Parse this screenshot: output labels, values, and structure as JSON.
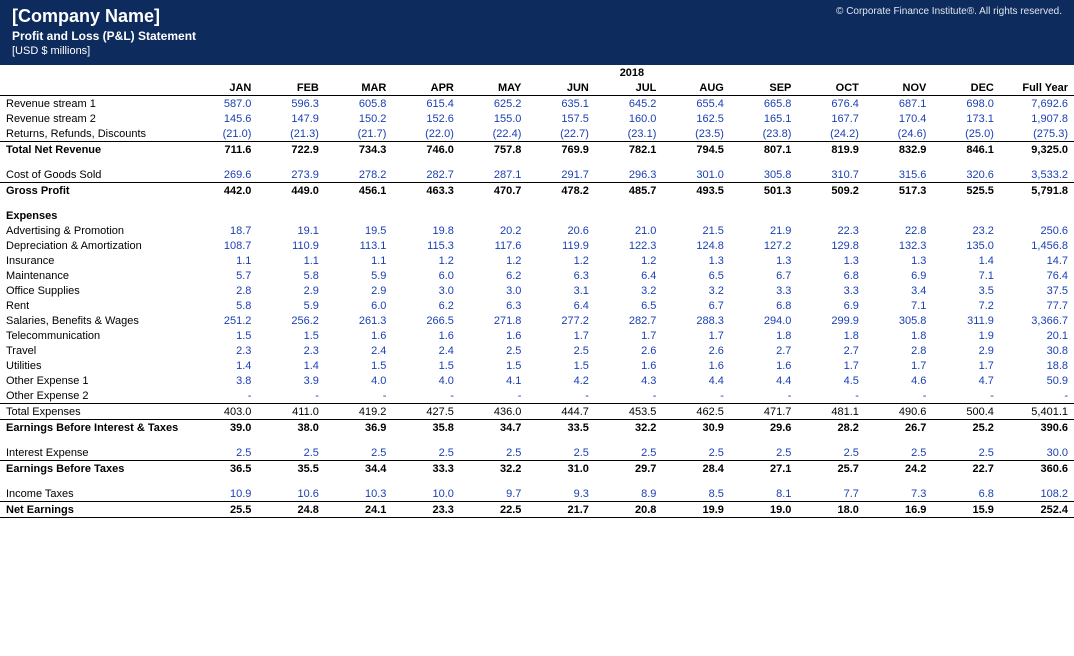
{
  "header": {
    "company_name": "[Company Name]",
    "subtitle": "Profit and Loss (P&L) Statement",
    "unit": "[USD $ millions]",
    "copyright": "© Corporate Finance Institute®. All rights reserved."
  },
  "table": {
    "year": "2018",
    "months": [
      "JAN",
      "FEB",
      "MAR",
      "APR",
      "MAY",
      "JUN",
      "JUL",
      "AUG",
      "SEP",
      "OCT",
      "NOV",
      "DEC"
    ],
    "full_year_label": "Full Year",
    "colors": {
      "header_bg": "#0d2b5c",
      "header_text": "#ffffff",
      "data_text": "#1a3fb3",
      "total_text": "#000000",
      "border": "#000000"
    },
    "rows": [
      {
        "type": "data",
        "label": "Revenue stream 1",
        "values": [
          "587.0",
          "596.3",
          "605.8",
          "615.4",
          "625.2",
          "635.1",
          "645.2",
          "655.4",
          "665.8",
          "676.4",
          "687.1",
          "698.0"
        ],
        "fy": "7,692.6"
      },
      {
        "type": "data",
        "label": "Revenue stream 2",
        "values": [
          "145.6",
          "147.9",
          "150.2",
          "152.6",
          "155.0",
          "157.5",
          "160.0",
          "162.5",
          "165.1",
          "167.7",
          "170.4",
          "173.1"
        ],
        "fy": "1,907.8"
      },
      {
        "type": "data",
        "label": "Returns, Refunds, Discounts",
        "values": [
          "(21.0)",
          "(21.3)",
          "(21.7)",
          "(22.0)",
          "(22.4)",
          "(22.7)",
          "(23.1)",
          "(23.5)",
          "(23.8)",
          "(24.2)",
          "(24.6)",
          "(25.0)"
        ],
        "fy": "(275.3)"
      },
      {
        "type": "total",
        "label": "Total Net Revenue",
        "values": [
          "711.6",
          "722.9",
          "734.3",
          "746.0",
          "757.8",
          "769.9",
          "782.1",
          "794.5",
          "807.1",
          "819.9",
          "832.9",
          "846.1"
        ],
        "fy": "9,325.0",
        "border_top": true
      },
      {
        "type": "spacer"
      },
      {
        "type": "data",
        "label": "Cost of Goods Sold",
        "values": [
          "269.6",
          "273.9",
          "278.2",
          "282.7",
          "287.1",
          "291.7",
          "296.3",
          "301.0",
          "305.8",
          "310.7",
          "315.6",
          "320.6"
        ],
        "fy": "3,533.2"
      },
      {
        "type": "total",
        "label": "Gross Profit",
        "values": [
          "442.0",
          "449.0",
          "456.1",
          "463.3",
          "470.7",
          "478.2",
          "485.7",
          "493.5",
          "501.3",
          "509.2",
          "517.3",
          "525.5"
        ],
        "fy": "5,791.8",
        "border_top": true
      },
      {
        "type": "spacer"
      },
      {
        "type": "section",
        "label": "Expenses"
      },
      {
        "type": "data",
        "label": "Advertising & Promotion",
        "values": [
          "18.7",
          "19.1",
          "19.5",
          "19.8",
          "20.2",
          "20.6",
          "21.0",
          "21.5",
          "21.9",
          "22.3",
          "22.8",
          "23.2"
        ],
        "fy": "250.6"
      },
      {
        "type": "data",
        "label": "Depreciation & Amortization",
        "values": [
          "108.7",
          "110.9",
          "113.1",
          "115.3",
          "117.6",
          "119.9",
          "122.3",
          "124.8",
          "127.2",
          "129.8",
          "132.3",
          "135.0"
        ],
        "fy": "1,456.8"
      },
      {
        "type": "data",
        "label": "Insurance",
        "values": [
          "1.1",
          "1.1",
          "1.1",
          "1.2",
          "1.2",
          "1.2",
          "1.2",
          "1.3",
          "1.3",
          "1.3",
          "1.3",
          "1.4"
        ],
        "fy": "14.7"
      },
      {
        "type": "data",
        "label": "Maintenance",
        "values": [
          "5.7",
          "5.8",
          "5.9",
          "6.0",
          "6.2",
          "6.3",
          "6.4",
          "6.5",
          "6.7",
          "6.8",
          "6.9",
          "7.1"
        ],
        "fy": "76.4"
      },
      {
        "type": "data",
        "label": "Office Supplies",
        "values": [
          "2.8",
          "2.9",
          "2.9",
          "3.0",
          "3.0",
          "3.1",
          "3.2",
          "3.2",
          "3.3",
          "3.3",
          "3.4",
          "3.5"
        ],
        "fy": "37.5"
      },
      {
        "type": "data",
        "label": "Rent",
        "values": [
          "5.8",
          "5.9",
          "6.0",
          "6.2",
          "6.3",
          "6.4",
          "6.5",
          "6.7",
          "6.8",
          "6.9",
          "7.1",
          "7.2"
        ],
        "fy": "77.7"
      },
      {
        "type": "data",
        "label": "Salaries, Benefits & Wages",
        "values": [
          "251.2",
          "256.2",
          "261.3",
          "266.5",
          "271.8",
          "277.2",
          "282.7",
          "288.3",
          "294.0",
          "299.9",
          "305.8",
          "311.9"
        ],
        "fy": "3,366.7"
      },
      {
        "type": "data",
        "label": "Telecommunication",
        "values": [
          "1.5",
          "1.5",
          "1.6",
          "1.6",
          "1.6",
          "1.7",
          "1.7",
          "1.7",
          "1.8",
          "1.8",
          "1.8",
          "1.9"
        ],
        "fy": "20.1"
      },
      {
        "type": "data",
        "label": "Travel",
        "values": [
          "2.3",
          "2.3",
          "2.4",
          "2.4",
          "2.5",
          "2.5",
          "2.6",
          "2.6",
          "2.7",
          "2.7",
          "2.8",
          "2.9"
        ],
        "fy": "30.8"
      },
      {
        "type": "data",
        "label": "Utilities",
        "values": [
          "1.4",
          "1.4",
          "1.5",
          "1.5",
          "1.5",
          "1.5",
          "1.6",
          "1.6",
          "1.6",
          "1.7",
          "1.7",
          "1.7"
        ],
        "fy": "18.8"
      },
      {
        "type": "data",
        "label": "Other Expense 1",
        "values": [
          "3.8",
          "3.9",
          "4.0",
          "4.0",
          "4.1",
          "4.2",
          "4.3",
          "4.4",
          "4.4",
          "4.5",
          "4.6",
          "4.7"
        ],
        "fy": "50.9"
      },
      {
        "type": "data",
        "label": "Other Expense 2",
        "values": [
          "-",
          "-",
          "-",
          "-",
          "-",
          "-",
          "-",
          "-",
          "-",
          "-",
          "-",
          "-"
        ],
        "fy": "-"
      },
      {
        "type": "data",
        "label": "Total Expenses",
        "values": [
          "403.0",
          "411.0",
          "419.2",
          "427.5",
          "436.0",
          "444.7",
          "453.5",
          "462.5",
          "471.7",
          "481.1",
          "490.6",
          "500.4"
        ],
        "fy": "5,401.1",
        "border_top": true,
        "plain": true
      },
      {
        "type": "total",
        "label": "Earnings Before Interest & Taxes",
        "values": [
          "39.0",
          "38.0",
          "36.9",
          "35.8",
          "34.7",
          "33.5",
          "32.2",
          "30.9",
          "29.6",
          "28.2",
          "26.7",
          "25.2"
        ],
        "fy": "390.6",
        "border_top": true
      },
      {
        "type": "spacer"
      },
      {
        "type": "data",
        "label": "Interest Expense",
        "values": [
          "2.5",
          "2.5",
          "2.5",
          "2.5",
          "2.5",
          "2.5",
          "2.5",
          "2.5",
          "2.5",
          "2.5",
          "2.5",
          "2.5"
        ],
        "fy": "30.0"
      },
      {
        "type": "total",
        "label": "Earnings Before Taxes",
        "values": [
          "36.5",
          "35.5",
          "34.4",
          "33.3",
          "32.2",
          "31.0",
          "29.7",
          "28.4",
          "27.1",
          "25.7",
          "24.2",
          "22.7"
        ],
        "fy": "360.6",
        "border_top": true
      },
      {
        "type": "spacer"
      },
      {
        "type": "data",
        "label": "Income Taxes",
        "values": [
          "10.9",
          "10.6",
          "10.3",
          "10.0",
          "9.7",
          "9.3",
          "8.9",
          "8.5",
          "8.1",
          "7.7",
          "7.3",
          "6.8"
        ],
        "fy": "108.2"
      },
      {
        "type": "total",
        "label": "Net Earnings",
        "values": [
          "25.5",
          "24.8",
          "24.1",
          "23.3",
          "22.5",
          "21.7",
          "20.8",
          "19.9",
          "19.0",
          "18.0",
          "16.9",
          "15.9"
        ],
        "fy": "252.4",
        "border_top": true,
        "border_bottom": true
      }
    ]
  }
}
